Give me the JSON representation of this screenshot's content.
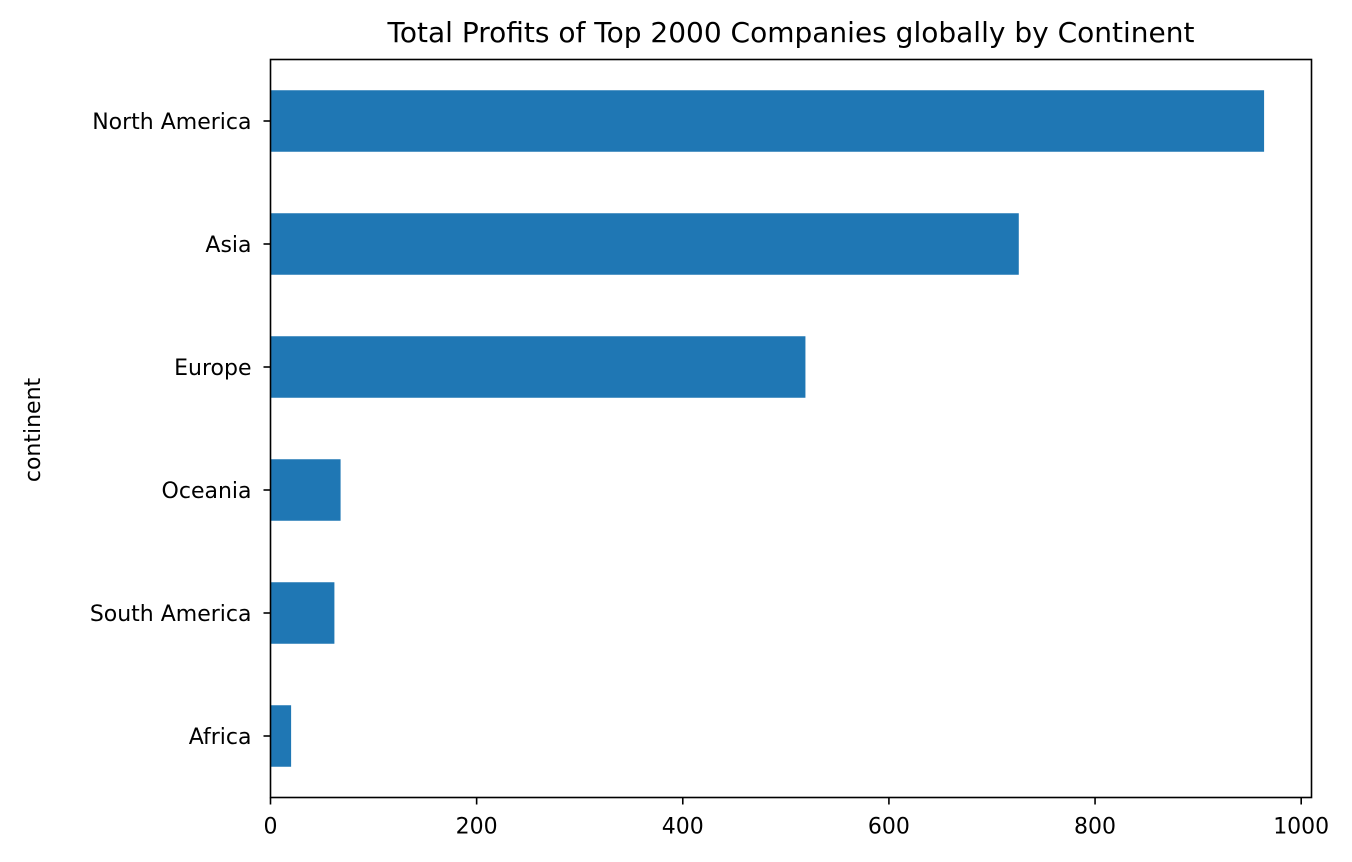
{
  "chart_data": {
    "type": "bar",
    "orientation": "horizontal",
    "title": "Total Profits of Top 2000 Companies globally by Continent",
    "xlabel": "",
    "ylabel": "continent",
    "categories": [
      "North America",
      "Asia",
      "Europe",
      "Oceania",
      "South America",
      "Africa"
    ],
    "values": [
      964,
      726,
      519,
      68,
      62,
      20
    ],
    "xlim": [
      0,
      1010
    ],
    "xticks": [
      0,
      200,
      400,
      600,
      800,
      1000
    ],
    "grid": false,
    "legend": "none",
    "bar_color": "#1f77b4"
  }
}
